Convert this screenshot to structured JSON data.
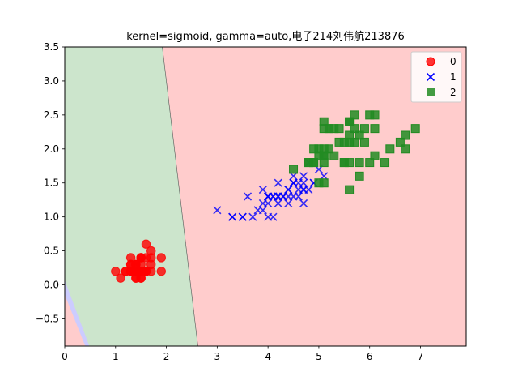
{
  "chart_data": {
    "type": "scatter",
    "title": "kernel=sigmoid, gamma=auto,电子214刘伟航213876",
    "xlabel": "",
    "ylabel": "",
    "xlim": [
      0,
      7.9
    ],
    "ylim": [
      -0.9,
      3.5
    ],
    "x_ticks": [
      0,
      1,
      2,
      3,
      4,
      5,
      6,
      7
    ],
    "y_ticks": [
      -0.5,
      0.0,
      0.5,
      1.0,
      1.5,
      2.0,
      2.5,
      3.0,
      3.5
    ],
    "grid": false,
    "legend_placement": "top-right",
    "regions": [
      {
        "class": "0",
        "color": "#ffcccc",
        "polygon": [
          [
            2.62,
            -0.9
          ],
          [
            1.92,
            3.5
          ],
          [
            7.9,
            3.5
          ],
          [
            7.9,
            -0.9
          ]
        ]
      },
      {
        "class": "2",
        "color": "#cce5cc",
        "polygon": [
          [
            0,
            3.5
          ],
          [
            1.92,
            3.5
          ],
          [
            2.62,
            -0.9
          ],
          [
            0.48,
            -0.9
          ],
          [
            0,
            0.06
          ]
        ]
      },
      {
        "class": "1",
        "color": "#ccccff",
        "polygon": [
          [
            0,
            0.06
          ],
          [
            0.48,
            -0.9
          ],
          [
            0.4,
            -0.9
          ],
          [
            0,
            -0.15
          ]
        ]
      },
      {
        "class": "0",
        "color": "#ffcccc",
        "polygon": [
          [
            0,
            -0.15
          ],
          [
            0.4,
            -0.9
          ],
          [
            0,
            -0.9
          ]
        ]
      }
    ],
    "series": [
      {
        "name": "0",
        "marker": "circle",
        "color": "#ff0000",
        "x": [
          1.4,
          1.4,
          1.3,
          1.5,
          1.4,
          1.7,
          1.4,
          1.5,
          1.4,
          1.5,
          1.5,
          1.6,
          1.4,
          1.1,
          1.2,
          1.5,
          1.3,
          1.4,
          1.7,
          1.5,
          1.7,
          1.5,
          1.0,
          1.7,
          1.9,
          1.6,
          1.6,
          1.5,
          1.4,
          1.6,
          1.6,
          1.5,
          1.5,
          1.4,
          1.5,
          1.2,
          1.3,
          1.4,
          1.3,
          1.5,
          1.3,
          1.3,
          1.3,
          1.6,
          1.9,
          1.4,
          1.6,
          1.4,
          1.5,
          1.4
        ],
        "y": [
          0.2,
          0.2,
          0.2,
          0.2,
          0.2,
          0.4,
          0.3,
          0.2,
          0.2,
          0.1,
          0.2,
          0.2,
          0.1,
          0.1,
          0.2,
          0.4,
          0.4,
          0.3,
          0.3,
          0.3,
          0.2,
          0.4,
          0.2,
          0.5,
          0.2,
          0.2,
          0.4,
          0.2,
          0.2,
          0.2,
          0.2,
          0.4,
          0.1,
          0.2,
          0.2,
          0.2,
          0.2,
          0.1,
          0.2,
          0.2,
          0.3,
          0.3,
          0.2,
          0.6,
          0.4,
          0.3,
          0.2,
          0.2,
          0.2,
          0.2
        ]
      },
      {
        "name": "1",
        "marker": "x",
        "color": "#0000ff",
        "x": [
          4.7,
          4.5,
          4.9,
          4.0,
          4.6,
          4.5,
          4.7,
          3.3,
          4.6,
          3.9,
          3.5,
          4.2,
          4.0,
          4.7,
          3.6,
          4.4,
          4.5,
          4.1,
          4.5,
          3.9,
          4.8,
          4.0,
          4.9,
          4.7,
          4.3,
          4.4,
          4.8,
          5.0,
          4.5,
          3.5,
          3.8,
          3.7,
          3.9,
          5.1,
          4.5,
          4.5,
          4.7,
          4.4,
          4.1,
          4.0,
          4.4,
          4.6,
          4.0,
          3.3,
          4.2,
          4.2,
          4.2,
          4.3,
          3.0,
          4.1
        ],
        "y": [
          1.4,
          1.5,
          1.5,
          1.3,
          1.5,
          1.3,
          1.6,
          1.0,
          1.3,
          1.4,
          1.0,
          1.5,
          1.0,
          1.4,
          1.3,
          1.4,
          1.5,
          1.0,
          1.5,
          1.1,
          1.8,
          1.3,
          1.5,
          1.2,
          1.3,
          1.4,
          1.4,
          1.7,
          1.5,
          1.0,
          1.1,
          1.0,
          1.2,
          1.6,
          1.5,
          1.6,
          1.5,
          1.3,
          1.3,
          1.3,
          1.2,
          1.4,
          1.2,
          1.0,
          1.3,
          1.2,
          1.3,
          1.3,
          1.1,
          1.3
        ]
      },
      {
        "name": "2",
        "marker": "square",
        "color": "#228b22",
        "x": [
          6.0,
          5.1,
          5.9,
          5.6,
          5.8,
          6.6,
          4.5,
          6.3,
          5.8,
          6.1,
          5.1,
          5.3,
          5.5,
          5.0,
          5.1,
          5.3,
          5.5,
          6.7,
          6.9,
          5.0,
          5.7,
          4.9,
          6.7,
          4.9,
          5.7,
          6.0,
          4.8,
          4.9,
          5.6,
          5.8,
          6.1,
          6.4,
          5.6,
          5.1,
          5.6,
          6.1,
          5.6,
          5.5,
          4.8,
          5.4,
          5.6,
          5.1,
          5.1,
          5.9,
          5.7,
          5.2,
          5.0,
          5.2,
          5.4,
          5.1
        ],
        "y": [
          2.5,
          1.9,
          2.1,
          1.8,
          2.2,
          2.1,
          1.7,
          1.8,
          1.8,
          2.5,
          2.0,
          1.9,
          2.1,
          2.0,
          2.4,
          2.3,
          1.8,
          2.2,
          2.3,
          1.5,
          2.3,
          2.0,
          2.0,
          1.8,
          2.1,
          1.8,
          1.8,
          1.8,
          2.1,
          1.6,
          1.9,
          2.0,
          2.2,
          1.5,
          1.4,
          2.3,
          2.4,
          1.8,
          1.8,
          2.1,
          2.4,
          2.3,
          1.9,
          2.3,
          2.5,
          2.3,
          1.9,
          2.0,
          2.3,
          1.8
        ]
      }
    ]
  }
}
